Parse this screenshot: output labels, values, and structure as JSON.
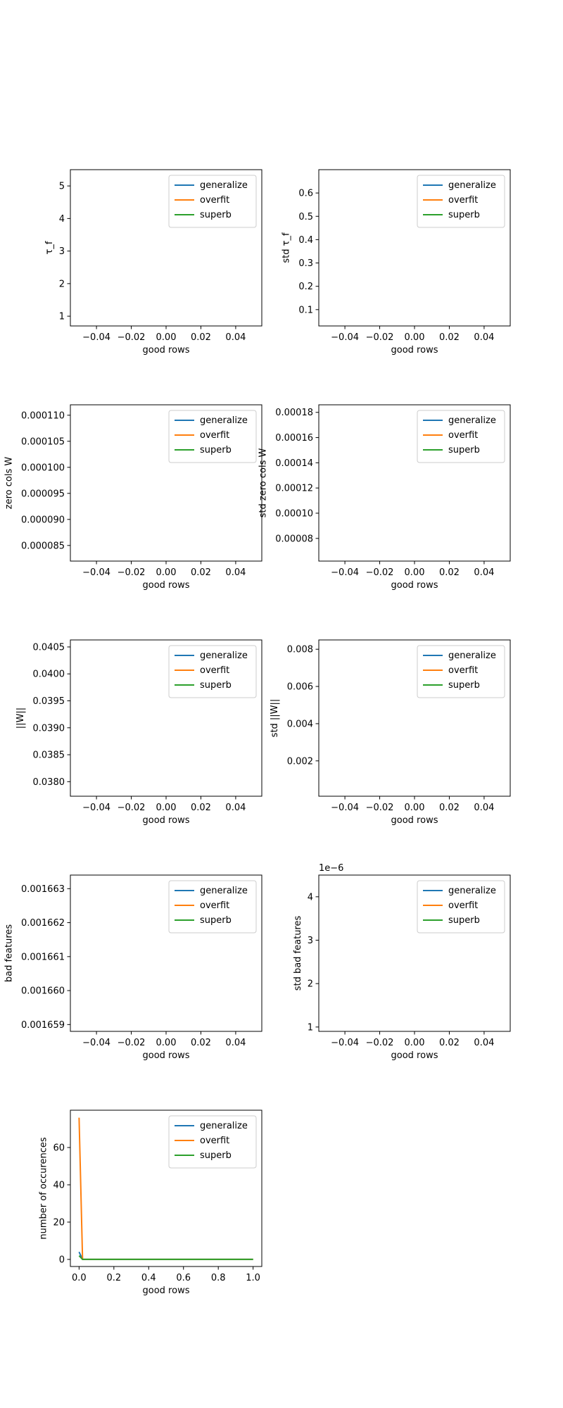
{
  "chart_data": [
    {
      "type": "line",
      "xlabel": "good rows",
      "ylabel": "τ_f",
      "xlim": [
        -0.055,
        0.055
      ],
      "ylim": [
        0.7,
        5.5
      ],
      "xticks": [
        "−0.04",
        "−0.02",
        "0.00",
        "0.02",
        "0.04"
      ],
      "yticks": [
        "1",
        "2",
        "3",
        "4",
        "5"
      ],
      "legend": "top-right",
      "series": [
        {
          "name": "generalize",
          "x": [],
          "y": []
        },
        {
          "name": "overfit",
          "x": [],
          "y": []
        },
        {
          "name": "superb",
          "x": [],
          "y": []
        }
      ]
    },
    {
      "type": "line",
      "xlabel": "good rows",
      "ylabel": "std τ_f",
      "xlim": [
        -0.055,
        0.055
      ],
      "ylim": [
        0.03,
        0.7
      ],
      "xticks": [
        "−0.04",
        "−0.02",
        "0.00",
        "0.02",
        "0.04"
      ],
      "yticks": [
        "0.1",
        "0.2",
        "0.3",
        "0.4",
        "0.5",
        "0.6"
      ],
      "legend": "top-right",
      "series": [
        {
          "name": "generalize",
          "x": [],
          "y": []
        },
        {
          "name": "overfit",
          "x": [],
          "y": []
        },
        {
          "name": "superb",
          "x": [],
          "y": []
        }
      ]
    },
    {
      "type": "line",
      "xlabel": "good rows",
      "ylabel": "zero cols W",
      "xlim": [
        -0.055,
        0.055
      ],
      "ylim": [
        8.2e-05,
        0.000112
      ],
      "xticks": [
        "−0.04",
        "−0.02",
        "0.00",
        "0.02",
        "0.04"
      ],
      "yticks": [
        "0.000085",
        "0.000090",
        "0.000095",
        "0.000100",
        "0.000105",
        "0.000110"
      ],
      "legend": "top-right",
      "series": [
        {
          "name": "generalize",
          "x": [],
          "y": []
        },
        {
          "name": "overfit",
          "x": [],
          "y": []
        },
        {
          "name": "superb",
          "x": [],
          "y": []
        }
      ]
    },
    {
      "type": "line",
      "xlabel": "good rows",
      "ylabel": "std zero cols W",
      "xlim": [
        -0.055,
        0.055
      ],
      "ylim": [
        6.2e-05,
        0.000186
      ],
      "xticks": [
        "−0.04",
        "−0.02",
        "0.00",
        "0.02",
        "0.04"
      ],
      "yticks": [
        "0.00008",
        "0.00010",
        "0.00012",
        "0.00014",
        "0.00016",
        "0.00018"
      ],
      "legend": "top-right",
      "series": [
        {
          "name": "generalize",
          "x": [],
          "y": []
        },
        {
          "name": "overfit",
          "x": [],
          "y": []
        },
        {
          "name": "superb",
          "x": [],
          "y": []
        }
      ]
    },
    {
      "type": "line",
      "xlabel": "good rows",
      "ylabel": "||W||",
      "xlim": [
        -0.055,
        0.055
      ],
      "ylim": [
        0.03773,
        0.04063
      ],
      "xticks": [
        "−0.04",
        "−0.02",
        "0.00",
        "0.02",
        "0.04"
      ],
      "yticks": [
        "0.0380",
        "0.0385",
        "0.0390",
        "0.0395",
        "0.0400",
        "0.0405"
      ],
      "legend": "top-right",
      "series": [
        {
          "name": "generalize",
          "x": [],
          "y": []
        },
        {
          "name": "overfit",
          "x": [],
          "y": []
        },
        {
          "name": "superb",
          "x": [],
          "y": []
        }
      ]
    },
    {
      "type": "line",
      "xlabel": "good rows",
      "ylabel": "std ||W||",
      "xlim": [
        -0.055,
        0.055
      ],
      "ylim": [
        0.0001,
        0.0085
      ],
      "xticks": [
        "−0.04",
        "−0.02",
        "0.00",
        "0.02",
        "0.04"
      ],
      "yticks": [
        "0.002",
        "0.004",
        "0.006",
        "0.008"
      ],
      "legend": "top-right",
      "series": [
        {
          "name": "generalize",
          "x": [],
          "y": []
        },
        {
          "name": "overfit",
          "x": [],
          "y": []
        },
        {
          "name": "superb",
          "x": [],
          "y": []
        }
      ]
    },
    {
      "type": "line",
      "xlabel": "good rows",
      "ylabel": "bad features",
      "xlim": [
        -0.055,
        0.055
      ],
      "ylim": [
        0.0016588,
        0.0016634
      ],
      "xticks": [
        "−0.04",
        "−0.02",
        "0.00",
        "0.02",
        "0.04"
      ],
      "yticks": [
        "0.001659",
        "0.001660",
        "0.001661",
        "0.001662",
        "0.001663"
      ],
      "legend": "top-right",
      "series": [
        {
          "name": "generalize",
          "x": [],
          "y": []
        },
        {
          "name": "overfit",
          "x": [],
          "y": []
        },
        {
          "name": "superb",
          "x": [],
          "y": []
        }
      ]
    },
    {
      "type": "line",
      "xlabel": "good rows",
      "ylabel": "std bad features",
      "offset_text": "1e−6",
      "xlim": [
        -0.055,
        0.055
      ],
      "ylim": [
        0.9,
        4.5
      ],
      "xticks": [
        "−0.04",
        "−0.02",
        "0.00",
        "0.02",
        "0.04"
      ],
      "yticks": [
        "1",
        "2",
        "3",
        "4"
      ],
      "legend": "top-right",
      "series": [
        {
          "name": "generalize",
          "x": [],
          "y": []
        },
        {
          "name": "overfit",
          "x": [],
          "y": []
        },
        {
          "name": "superb",
          "x": [],
          "y": []
        }
      ]
    },
    {
      "type": "line",
      "xlabel": "good rows",
      "ylabel": "number of occurences",
      "xlim": [
        -0.05,
        1.05
      ],
      "ylim": [
        -3.8,
        80
      ],
      "xticks": [
        "0.0",
        "0.2",
        "0.4",
        "0.6",
        "0.8",
        "1.0"
      ],
      "yticks": [
        "0",
        "20",
        "40",
        "60"
      ],
      "legend": "top-right",
      "series": [
        {
          "name": "generalize",
          "x": [
            0,
            0.02,
            0.04,
            0.1,
            0.2,
            0.4,
            0.6,
            0.8,
            1.0
          ],
          "y": [
            4,
            0,
            0,
            0,
            0,
            0,
            0,
            0,
            0
          ]
        },
        {
          "name": "overfit",
          "x": [
            0,
            0.02,
            0.04,
            0.1,
            0.2,
            0.4,
            0.6,
            0.8,
            1.0
          ],
          "y": [
            76,
            0,
            0,
            0,
            0,
            0,
            0,
            0,
            0
          ]
        },
        {
          "name": "superb",
          "x": [
            0,
            0.02,
            0.04,
            0.1,
            0.2,
            0.4,
            0.6,
            0.8,
            1.0
          ],
          "y": [
            2,
            0,
            0,
            0,
            0,
            0,
            0,
            0,
            0
          ]
        }
      ]
    }
  ],
  "colors": {
    "generalize": "#1f77b4",
    "overfit": "#ff7f0e",
    "superb": "#2ca02c"
  }
}
